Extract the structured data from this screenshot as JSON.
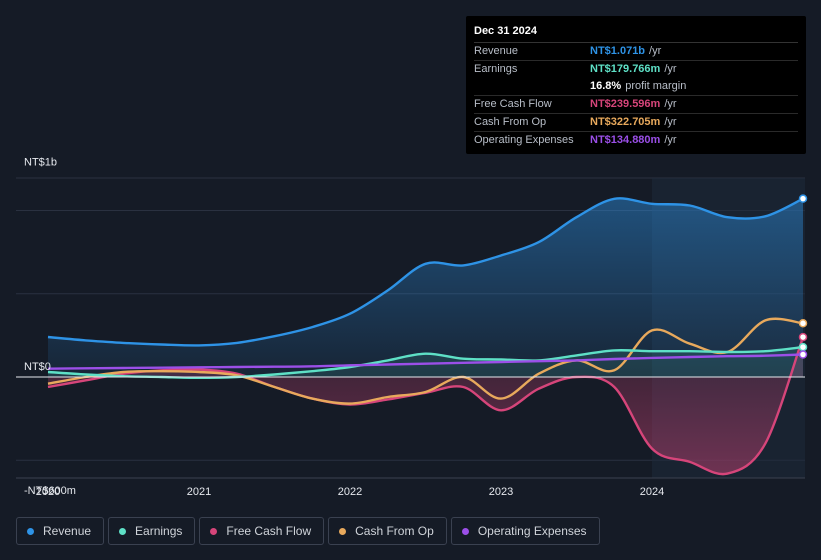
{
  "colors": {
    "revenue": "#2e93e6",
    "earnings": "#5ee0c6",
    "free_cash_flow": "#d6457a",
    "cash_from_op": "#e8a95c",
    "operating_expenses": "#9b4fe8",
    "background": "#151b26"
  },
  "tooltip": {
    "date": "Dec 31 2024",
    "rows": [
      {
        "label": "Revenue",
        "value": "NT$1.071b",
        "unit": "/yr",
        "color": "#2e93e6"
      },
      {
        "label": "Earnings",
        "value": "NT$179.766m",
        "unit": "/yr",
        "color": "#5ee0c6"
      },
      {
        "label": "",
        "value": "16.8%",
        "unit": "profit margin",
        "color": "#ffffff"
      },
      {
        "label": "Free Cash Flow",
        "value": "NT$239.596m",
        "unit": "/yr",
        "color": "#d6457a"
      },
      {
        "label": "Cash From Op",
        "value": "NT$322.705m",
        "unit": "/yr",
        "color": "#e8a95c"
      },
      {
        "label": "Operating Expenses",
        "value": "NT$134.880m",
        "unit": "/yr",
        "color": "#9b4fe8"
      }
    ]
  },
  "legend": [
    {
      "label": "Revenue",
      "color": "#2e93e6"
    },
    {
      "label": "Earnings",
      "color": "#5ee0c6"
    },
    {
      "label": "Free Cash Flow",
      "color": "#d6457a"
    },
    {
      "label": "Cash From Op",
      "color": "#e8a95c"
    },
    {
      "label": "Operating Expenses",
      "color": "#9b4fe8"
    }
  ],
  "chart_data": {
    "type": "area",
    "title": "",
    "xlabel": "",
    "ylabel": "",
    "y_tick_labels": {
      "top": "NT$1b",
      "zero": "NT$0",
      "bottom": "-NT$600m"
    },
    "y_tick_values": [
      1000,
      0,
      -600
    ],
    "ylim": [
      -600,
      1200
    ],
    "xlim": [
      2020.0,
      2025.0
    ],
    "x_ticks": [
      {
        "label": "2020",
        "value": 2020.0
      },
      {
        "label": "2021",
        "value": 2021.0
      },
      {
        "label": "2022",
        "value": 2022.0
      },
      {
        "label": "2023",
        "value": 2023.0
      },
      {
        "label": "2024",
        "value": 2024.0
      }
    ],
    "forecast_start": 2024.0,
    "series": [
      {
        "name": "Revenue",
        "color": "#2e93e6",
        "x": [
          2020.0,
          2020.25,
          2020.5,
          2020.75,
          2021.0,
          2021.25,
          2021.5,
          2021.75,
          2022.0,
          2022.25,
          2022.5,
          2022.75,
          2023.0,
          2023.25,
          2023.5,
          2023.75,
          2024.0,
          2024.25,
          2024.5,
          2024.75,
          2025.0
        ],
        "y": [
          240,
          220,
          205,
          195,
          190,
          205,
          245,
          300,
          380,
          520,
          680,
          670,
          730,
          810,
          960,
          1070,
          1040,
          1030,
          960,
          965,
          1071
        ]
      },
      {
        "name": "Earnings",
        "color": "#5ee0c6",
        "x": [
          2020.0,
          2020.25,
          2020.5,
          2020.75,
          2021.0,
          2021.25,
          2021.5,
          2021.75,
          2022.0,
          2022.25,
          2022.5,
          2022.75,
          2023.0,
          2023.25,
          2023.5,
          2023.75,
          2024.0,
          2024.25,
          2024.5,
          2024.75,
          2025.0
        ],
        "y": [
          30,
          15,
          5,
          0,
          -5,
          0,
          15,
          35,
          60,
          100,
          140,
          110,
          105,
          100,
          130,
          160,
          155,
          155,
          150,
          155,
          179.766
        ]
      },
      {
        "name": "Free Cash Flow",
        "color": "#d6457a",
        "x": [
          2020.0,
          2020.25,
          2020.5,
          2020.75,
          2021.0,
          2021.25,
          2021.5,
          2021.75,
          2022.0,
          2022.25,
          2022.5,
          2022.75,
          2023.0,
          2023.25,
          2023.5,
          2023.75,
          2024.0,
          2024.25,
          2024.5,
          2024.75,
          2025.0
        ],
        "y": [
          -60,
          -20,
          20,
          40,
          45,
          20,
          -60,
          -130,
          -165,
          -135,
          -95,
          -60,
          -200,
          -70,
          0,
          -60,
          -430,
          -510,
          -580,
          -400,
          239.596
        ]
      },
      {
        "name": "Cash From Op",
        "color": "#e8a95c",
        "x": [
          2020.0,
          2020.25,
          2020.5,
          2020.75,
          2021.0,
          2021.25,
          2021.5,
          2021.75,
          2022.0,
          2022.25,
          2022.5,
          2022.75,
          2023.0,
          2023.25,
          2023.5,
          2023.75,
          2024.0,
          2024.25,
          2024.5,
          2024.75,
          2025.0
        ],
        "y": [
          -40,
          0,
          30,
          35,
          30,
          10,
          -60,
          -130,
          -160,
          -120,
          -90,
          0,
          -130,
          20,
          100,
          40,
          280,
          200,
          150,
          340,
          322.705
        ]
      },
      {
        "name": "Operating Expenses",
        "color": "#9b4fe8",
        "x": [
          2020.0,
          2020.25,
          2020.5,
          2020.75,
          2021.0,
          2021.25,
          2021.5,
          2021.75,
          2022.0,
          2022.25,
          2022.5,
          2022.75,
          2023.0,
          2023.25,
          2023.5,
          2023.75,
          2024.0,
          2024.25,
          2024.5,
          2024.75,
          2025.0
        ],
        "y": [
          50,
          52,
          54,
          56,
          58,
          60,
          62,
          64,
          70,
          75,
          80,
          85,
          90,
          95,
          100,
          108,
          115,
          120,
          125,
          128,
          134.88
        ]
      }
    ]
  }
}
